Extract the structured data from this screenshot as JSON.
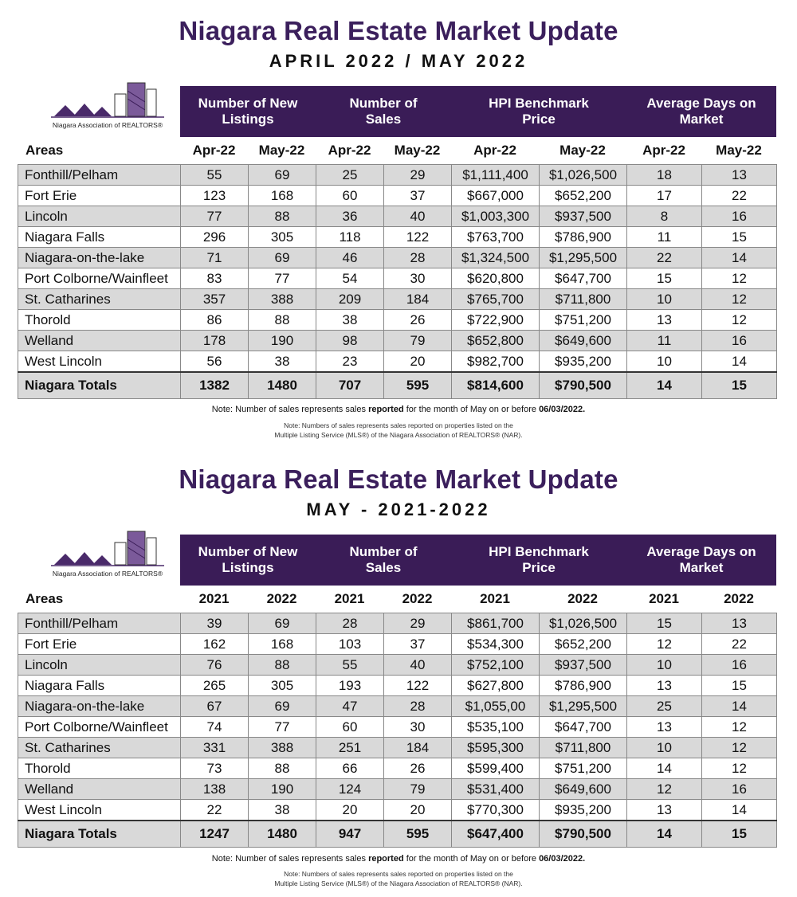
{
  "sections": [
    {
      "title": "Niagara Real Estate Market Update",
      "subtitle": "APRIL 2022 / MAY 2022",
      "logo_text": "Niagara Association of REALTORS®",
      "headers": [
        "Number of New Listings",
        "Number of Sales",
        "HPI Benchmark Price",
        "Average Days on Market"
      ],
      "subheaders": [
        "Areas",
        "Apr-22",
        "May-22",
        "Apr-22",
        "May-22",
        "Apr-22",
        "May-22",
        "Apr-22",
        "May-22"
      ],
      "rows": [
        [
          "Fonthill/Pelham",
          "55",
          "69",
          "25",
          "29",
          "$1,111,400",
          "$1,026,500",
          "18",
          "13"
        ],
        [
          "Fort Erie",
          "123",
          "168",
          "60",
          "37",
          "$667,000",
          "$652,200",
          "17",
          "22"
        ],
        [
          "Lincoln",
          "77",
          "88",
          "36",
          "40",
          "$1,003,300",
          "$937,500",
          "8",
          "16"
        ],
        [
          "Niagara Falls",
          "296",
          "305",
          "118",
          "122",
          "$763,700",
          "$786,900",
          "11",
          "15"
        ],
        [
          "Niagara-on-the-lake",
          "71",
          "69",
          "46",
          "28",
          "$1,324,500",
          "$1,295,500",
          "22",
          "14"
        ],
        [
          "Port Colborne/Wainfleet",
          "83",
          "77",
          "54",
          "30",
          "$620,800",
          "$647,700",
          "15",
          "12"
        ],
        [
          "St. Catharines",
          "357",
          "388",
          "209",
          "184",
          "$765,700",
          "$711,800",
          "10",
          "12"
        ],
        [
          "Thorold",
          "86",
          "88",
          "38",
          "26",
          "$722,900",
          "$751,200",
          "13",
          "12"
        ],
        [
          "Welland",
          "178",
          "190",
          "98",
          "79",
          "$652,800",
          "$649,600",
          "11",
          "16"
        ],
        [
          "West Lincoln",
          "56",
          "38",
          "23",
          "20",
          "$982,700",
          "$935,200",
          "10",
          "14"
        ]
      ],
      "totals": [
        "Niagara Totals",
        "1382",
        "1480",
        "707",
        "595",
        "$814,600",
        "$790,500",
        "14",
        "15"
      ],
      "note1_a": "Note: Number of sales represents sales ",
      "note1_b": "reported",
      "note1_c": " for the month of May on or before ",
      "note1_d": "06/03/2022.",
      "note2_line1": "Note: Numbers of sales represents sales reported on properties listed on the",
      "note2_line2": "Multiple Listing Service (MLS®) of the Niagara Association of REALTORS® (NAR)."
    },
    {
      "title": "Niagara Real Estate Market Update",
      "subtitle": "MAY - 2021-2022",
      "logo_text": "Niagara Association of REALTORS®",
      "headers": [
        "Number of New Listings",
        "Number of Sales",
        "HPI Benchmark Price",
        "Average Days on Market"
      ],
      "subheaders": [
        "Areas",
        "2021",
        "2022",
        "2021",
        "2022",
        "2021",
        "2022",
        "2021",
        "2022"
      ],
      "rows": [
        [
          "Fonthill/Pelham",
          "39",
          "69",
          "28",
          "29",
          "$861,700",
          "$1,026,500",
          "15",
          "13"
        ],
        [
          "Fort Erie",
          "162",
          "168",
          "103",
          "37",
          "$534,300",
          "$652,200",
          "12",
          "22"
        ],
        [
          "Lincoln",
          "76",
          "88",
          "55",
          "40",
          "$752,100",
          "$937,500",
          "10",
          "16"
        ],
        [
          "Niagara Falls",
          "265",
          "305",
          "193",
          "122",
          "$627,800",
          "$786,900",
          "13",
          "15"
        ],
        [
          "Niagara-on-the-lake",
          "67",
          "69",
          "47",
          "28",
          "$1,055,00",
          "$1,295,500",
          "25",
          "14"
        ],
        [
          "Port Colborne/Wainfleet",
          "74",
          "77",
          "60",
          "30",
          "$535,100",
          "$647,700",
          "13",
          "12"
        ],
        [
          "St. Catharines",
          "331",
          "388",
          "251",
          "184",
          "$595,300",
          "$711,800",
          "10",
          "12"
        ],
        [
          "Thorold",
          "73",
          "88",
          "66",
          "26",
          "$599,400",
          "$751,200",
          "14",
          "12"
        ],
        [
          "Welland",
          "138",
          "190",
          "124",
          "79",
          "$531,400",
          "$649,600",
          "12",
          "16"
        ],
        [
          "West Lincoln",
          "22",
          "38",
          "20",
          "20",
          "$770,300",
          "$935,200",
          "13",
          "14"
        ]
      ],
      "totals": [
        "Niagara Totals",
        "1247",
        "1480",
        "947",
        "595",
        "$647,400",
        "$790,500",
        "14",
        "15"
      ],
      "note1_a": "Note: Number of sales represents sales ",
      "note1_b": "reported",
      "note1_c": " for the month of May on or before ",
      "note1_d": "06/03/2022.",
      "note2_line1": "Note: Numbers of sales represents sales reported on properties listed on the",
      "note2_line2": "Multiple Listing Service (MLS®) of the Niagara Association of REALTORS® (NAR)."
    }
  ]
}
